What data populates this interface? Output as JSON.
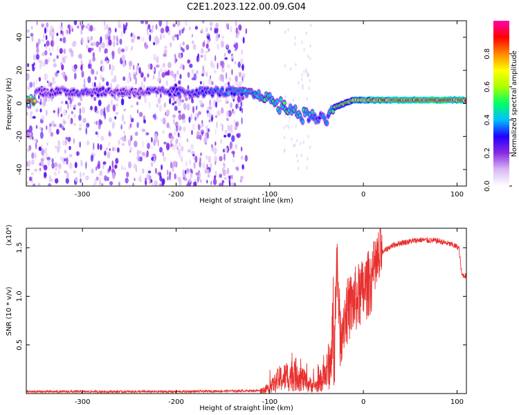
{
  "title": "C2E1.2023.122.00.09.G04",
  "chart_data": [
    {
      "type": "heatmap",
      "xlabel": "Height of straight line (km)",
      "ylabel": "Frequency (Hz)",
      "xlim": [
        -360,
        110
      ],
      "ylim": [
        -50,
        50
      ],
      "xticks": [
        -300,
        -200,
        -100,
        0,
        100
      ],
      "yticks": [
        -40,
        -20,
        0,
        20,
        40
      ],
      "colorbar": {
        "label": "Normalized spectral amplitude",
        "range": [
          0.0,
          1.0
        ],
        "ticks": [
          "0.0",
          "0.2",
          "0.4",
          "0.6",
          "0.8"
        ],
        "colormap": [
          "#ffffff",
          "#d9b8f5",
          "#8a2be2",
          "#2200ff",
          "#00bfff",
          "#00ff66",
          "#aaff00",
          "#ffff00",
          "#ff8800",
          "#ff0000",
          "#ff00aa"
        ]
      },
      "ridge": [
        {
          "x": -350,
          "f": 7,
          "amp": 0.25
        },
        {
          "x": -300,
          "f": 7,
          "amp": 0.3
        },
        {
          "x": -250,
          "f": 7,
          "amp": 0.25
        },
        {
          "x": -200,
          "f": 7,
          "amp": 0.3
        },
        {
          "x": -150,
          "f": 7,
          "amp": 0.35
        },
        {
          "x": -120,
          "f": 6,
          "amp": 0.45
        },
        {
          "x": -100,
          "f": 3,
          "amp": 0.5
        },
        {
          "x": -80,
          "f": -3,
          "amp": 0.5
        },
        {
          "x": -60,
          "f": -8,
          "amp": 0.45
        },
        {
          "x": -40,
          "f": -10,
          "amp": 0.35
        },
        {
          "x": -30,
          "f": -2,
          "amp": 0.55
        },
        {
          "x": -10,
          "f": 2,
          "amp": 0.75
        },
        {
          "x": 20,
          "f": 2,
          "amp": 0.9
        },
        {
          "x": 60,
          "f": 2,
          "amp": 0.95
        },
        {
          "x": 110,
          "f": 2,
          "amp": 0.9
        }
      ]
    },
    {
      "type": "line",
      "xlabel": "Height of straight line (km)",
      "ylabel": "SNR (10 * v/v)",
      "yscale_label": "(x10⁴)",
      "xlim": [
        -360,
        110
      ],
      "ylim": [
        0,
        1.7
      ],
      "xticks": [
        -300,
        -200,
        -100,
        0,
        100
      ],
      "yticks": [
        "0.5",
        "1.0",
        "1.5"
      ],
      "color": "#e8312f",
      "series": [
        {
          "x": [
            -360,
            -300,
            -200,
            -110,
            -100,
            -90,
            -80,
            -70,
            -60,
            -50,
            -40,
            -35,
            -30,
            -28,
            -25,
            -20,
            -10,
            0,
            10,
            20,
            30,
            40,
            60,
            80,
            95,
            102,
            105,
            110
          ],
          "y": [
            0.02,
            0.02,
            0.02,
            0.03,
            0.06,
            0.15,
            0.18,
            0.2,
            0.1,
            0.08,
            0.2,
            0.35,
            0.9,
            1.4,
            0.6,
            0.8,
            0.95,
            1.05,
            1.2,
            1.45,
            1.52,
            1.55,
            1.58,
            1.57,
            1.53,
            1.5,
            1.22,
            1.21
          ]
        }
      ]
    }
  ]
}
